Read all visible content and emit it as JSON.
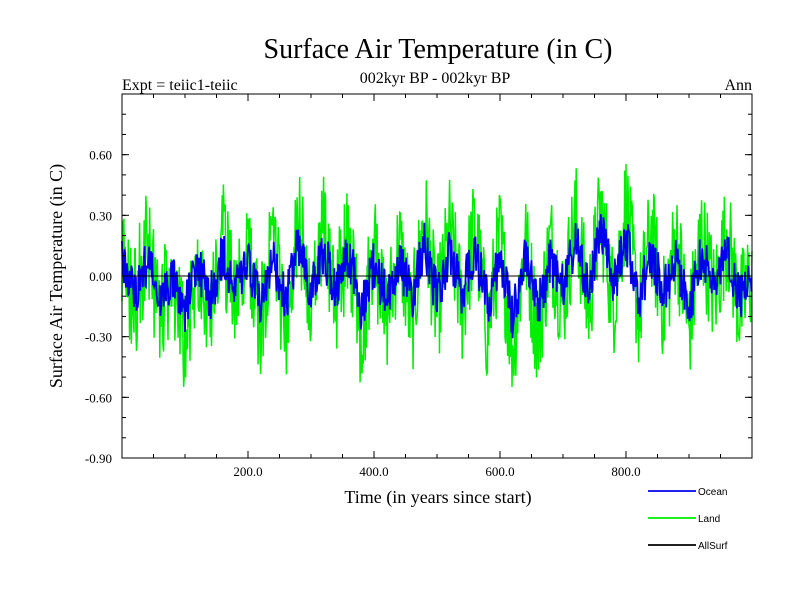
{
  "chart_data": {
    "type": "line",
    "title": "Surface Air Temperature (in C)",
    "subtitle": "002kyr BP - 002kyr BP",
    "experiment_label": "Expt = teiic1-teiic",
    "season_label": "Ann",
    "xlabel": "Time (in years since start)",
    "ylabel": "Surface Air Temperature (in C)",
    "xlim": [
      0,
      1000
    ],
    "ylim": [
      -0.9,
      0.9
    ],
    "x_ticks": [
      200,
      400,
      600,
      800
    ],
    "x_tick_labels": [
      "200.0",
      "400.0",
      "600.0",
      "800.0"
    ],
    "y_ticks": [
      -0.9,
      -0.6,
      -0.3,
      0.0,
      0.3,
      0.6
    ],
    "y_tick_labels": [
      "-0.90",
      "-0.60",
      "-0.30",
      "0.00",
      "0.30",
      "0.60"
    ],
    "grid": false,
    "zero_line": true,
    "legend_position": "bottom-right, below plot",
    "series": [
      {
        "name": "Land",
        "color": "#00ee00",
        "x": [
          0,
          20,
          40,
          60,
          80,
          100,
          120,
          140,
          160,
          180,
          200,
          220,
          240,
          260,
          280,
          300,
          320,
          340,
          360,
          380,
          400,
          420,
          440,
          460,
          480,
          500,
          520,
          540,
          560,
          580,
          600,
          620,
          640,
          660,
          680,
          700,
          720,
          740,
          760,
          780,
          800,
          820,
          840,
          860,
          880,
          900,
          920,
          940,
          960,
          980,
          1000
        ],
        "values": [
          0.15,
          -0.25,
          0.3,
          -0.35,
          0.05,
          -0.6,
          0.2,
          -0.45,
          0.35,
          -0.3,
          0.25,
          -0.45,
          0.3,
          -0.5,
          0.5,
          -0.3,
          0.4,
          -0.2,
          0.35,
          -0.55,
          0.25,
          -0.4,
          0.3,
          -0.45,
          0.55,
          -0.35,
          0.4,
          -0.3,
          0.45,
          -0.5,
          0.35,
          -0.65,
          0.3,
          -0.55,
          0.3,
          -0.25,
          0.55,
          -0.3,
          0.6,
          -0.25,
          0.65,
          -0.35,
          0.4,
          -0.3,
          0.35,
          -0.5,
          0.4,
          -0.2,
          0.4,
          -0.3,
          0.0
        ]
      },
      {
        "name": "Ocean",
        "color": "#0000ee",
        "x": [
          0,
          20,
          40,
          60,
          80,
          100,
          120,
          140,
          160,
          180,
          200,
          220,
          240,
          260,
          280,
          300,
          320,
          340,
          360,
          380,
          400,
          420,
          440,
          460,
          480,
          500,
          520,
          540,
          560,
          580,
          600,
          620,
          640,
          660,
          680,
          700,
          720,
          740,
          760,
          780,
          800,
          820,
          840,
          860,
          880,
          900,
          920,
          940,
          960,
          980,
          1000
        ],
        "values": [
          0.1,
          -0.15,
          0.15,
          -0.2,
          0.0,
          -0.3,
          0.1,
          -0.2,
          0.2,
          -0.15,
          0.1,
          -0.25,
          0.15,
          -0.25,
          0.3,
          -0.15,
          0.2,
          -0.1,
          0.2,
          -0.3,
          0.1,
          -0.2,
          0.15,
          -0.2,
          0.3,
          -0.2,
          0.2,
          -0.15,
          0.25,
          -0.25,
          0.15,
          -0.35,
          0.15,
          -0.3,
          0.15,
          -0.1,
          0.3,
          -0.15,
          0.45,
          -0.1,
          0.35,
          -0.2,
          0.2,
          -0.15,
          0.15,
          -0.3,
          0.2,
          -0.1,
          0.25,
          -0.2,
          0.0
        ]
      },
      {
        "name": "AllSurf",
        "color": "#000000",
        "x": [
          0,
          1000
        ],
        "values": [
          0.0,
          0.0
        ]
      }
    ]
  }
}
